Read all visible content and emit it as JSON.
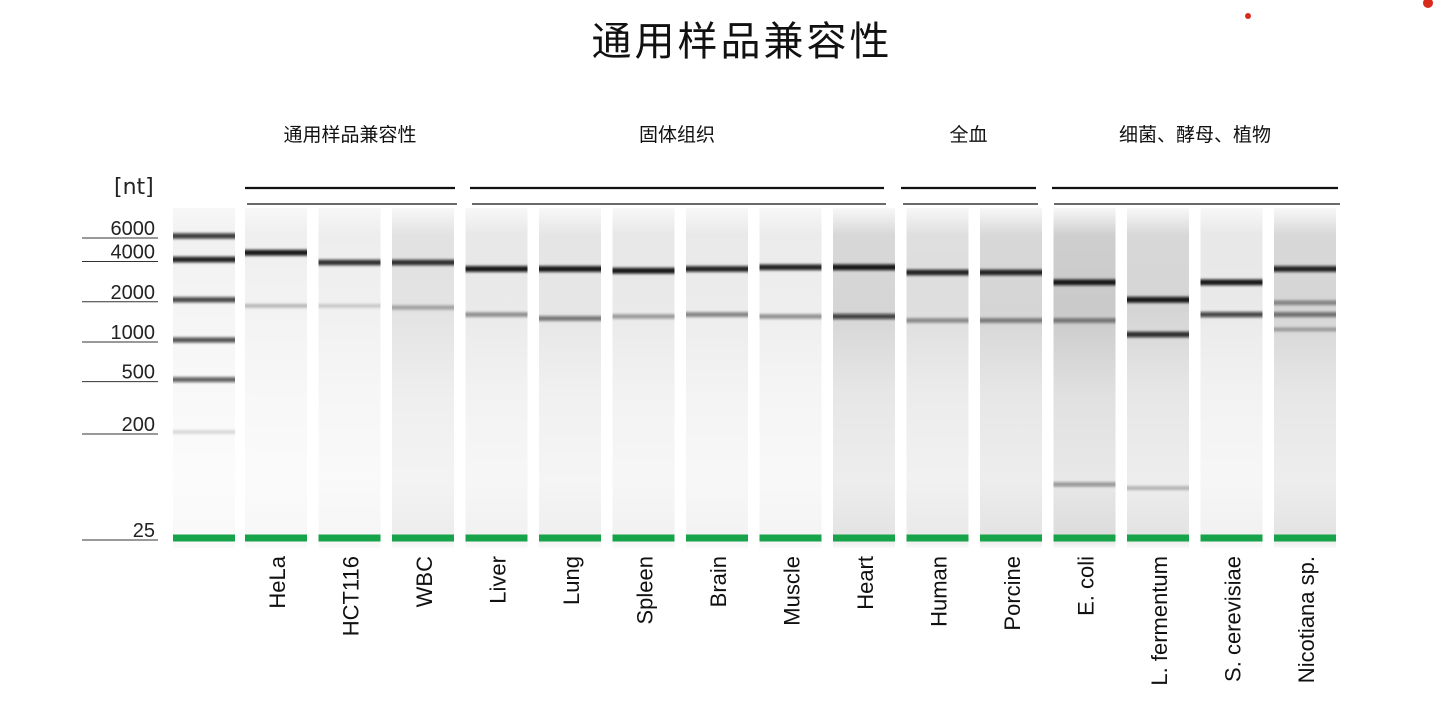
{
  "title": "通用样品兼容性",
  "chart_data": {
    "type": "gel",
    "title": "通用样品兼容性",
    "ylabel": "[nt]",
    "y_scale": "log",
    "ladder": {
      "ticks": [
        6000,
        4000,
        2000,
        1000,
        500,
        200,
        25
      ],
      "tick_labels": [
        "6000",
        "4000",
        "2000",
        "1000",
        "500",
        "200",
        "25"
      ],
      "bands": [
        {
          "nt": 6000,
          "intensity": 0.8
        },
        {
          "nt": 4000,
          "intensity": 0.9
        },
        {
          "nt": 2000,
          "intensity": 0.75
        },
        {
          "nt": 1000,
          "intensity": 0.7
        },
        {
          "nt": 500,
          "intensity": 0.65
        },
        {
          "nt": 200,
          "intensity": 0.15
        }
      ],
      "marker_nt": 25
    },
    "groups": [
      {
        "label": "通用样品兼容性",
        "lanes": [
          0,
          2
        ]
      },
      {
        "label": "固体组织",
        "lanes": [
          3,
          8
        ]
      },
      {
        "label": "全血",
        "lanes": [
          9,
          10
        ]
      },
      {
        "label": "细菌、酵母、植物",
        "lanes": [
          11,
          14
        ]
      }
    ],
    "lanes": [
      {
        "name": "HeLa",
        "smear": 0.04,
        "bands": [
          {
            "nt": 4500,
            "intensity": 0.95
          },
          {
            "nt": 1800,
            "intensity": 0.25
          }
        ]
      },
      {
        "name": "HCT116",
        "smear": 0.06,
        "bands": [
          {
            "nt": 3800,
            "intensity": 0.85
          },
          {
            "nt": 1800,
            "intensity": 0.18
          }
        ]
      },
      {
        "name": "WBC",
        "smear": 0.18,
        "bands": [
          {
            "nt": 3800,
            "intensity": 0.85
          },
          {
            "nt": 1750,
            "intensity": 0.35
          }
        ]
      },
      {
        "name": "Liver",
        "smear": 0.12,
        "bands": [
          {
            "nt": 3400,
            "intensity": 0.95
          },
          {
            "nt": 1550,
            "intensity": 0.45
          }
        ]
      },
      {
        "name": "Lung",
        "smear": 0.15,
        "bands": [
          {
            "nt": 3400,
            "intensity": 0.95
          },
          {
            "nt": 1450,
            "intensity": 0.55
          }
        ]
      },
      {
        "name": "Spleen",
        "smear": 0.12,
        "bands": [
          {
            "nt": 3300,
            "intensity": 0.95
          },
          {
            "nt": 1500,
            "intensity": 0.4
          }
        ]
      },
      {
        "name": "Brain",
        "smear": 0.1,
        "bands": [
          {
            "nt": 3400,
            "intensity": 0.9
          },
          {
            "nt": 1550,
            "intensity": 0.5
          }
        ]
      },
      {
        "name": "Muscle",
        "smear": 0.08,
        "bands": [
          {
            "nt": 3500,
            "intensity": 0.9
          },
          {
            "nt": 1500,
            "intensity": 0.45
          }
        ]
      },
      {
        "name": "Heart",
        "smear": 0.3,
        "bands": [
          {
            "nt": 3500,
            "intensity": 0.95
          },
          {
            "nt": 1500,
            "intensity": 0.75
          }
        ]
      },
      {
        "name": "Human",
        "smear": 0.22,
        "bands": [
          {
            "nt": 3200,
            "intensity": 0.9
          },
          {
            "nt": 1400,
            "intensity": 0.45
          }
        ]
      },
      {
        "name": "Porcine",
        "smear": 0.3,
        "bands": [
          {
            "nt": 3200,
            "intensity": 0.9
          },
          {
            "nt": 1400,
            "intensity": 0.5
          }
        ]
      },
      {
        "name": "E. coli",
        "smear": 0.4,
        "bands": [
          {
            "nt": 2700,
            "intensity": 0.95
          },
          {
            "nt": 1400,
            "intensity": 0.5
          },
          {
            "nt": 80,
            "intensity": 0.4
          }
        ]
      },
      {
        "name": "L. fermentum",
        "smear": 0.3,
        "bands": [
          {
            "nt": 2000,
            "intensity": 0.95
          },
          {
            "nt": 1100,
            "intensity": 0.85
          },
          {
            "nt": 75,
            "intensity": 0.25
          }
        ]
      },
      {
        "name": "S. cerevisiae",
        "smear": 0.12,
        "bands": [
          {
            "nt": 2700,
            "intensity": 0.95
          },
          {
            "nt": 1550,
            "intensity": 0.75
          }
        ]
      },
      {
        "name": "Nicotiana sp.",
        "smear": 0.3,
        "bands": [
          {
            "nt": 3400,
            "intensity": 0.9
          },
          {
            "nt": 1900,
            "intensity": 0.45
          },
          {
            "nt": 1550,
            "intensity": 0.55
          },
          {
            "nt": 1200,
            "intensity": 0.3
          }
        ]
      }
    ]
  },
  "colors": {
    "marker": "#17a34a",
    "band": "#111111",
    "accent_dot": "#d92b1c"
  }
}
